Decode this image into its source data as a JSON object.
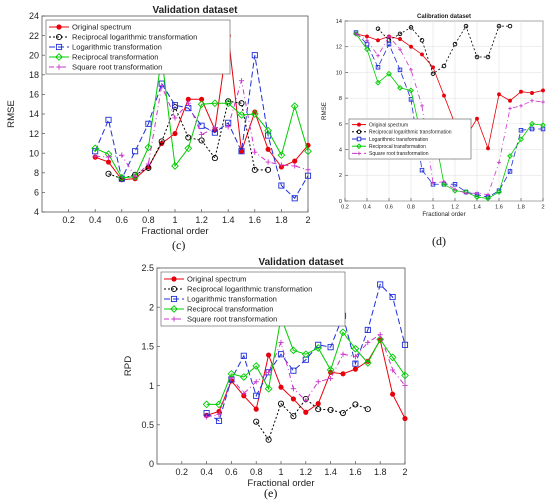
{
  "panel_labels": [
    "(c)",
    "(d)",
    "(e)"
  ],
  "chart_data": [
    {
      "id": "c",
      "type": "line",
      "title": "Validation dataset",
      "xlabel": "Fractional order",
      "ylabel": "RMSE",
      "xlim": [
        0,
        2
      ],
      "ylim": [
        4,
        24
      ],
      "xticks": [
        "0.2",
        "0.4",
        "0.6",
        "0.8",
        "1",
        "1.2",
        "1.4",
        "1.6",
        "1.8",
        "2"
      ],
      "yticks": [
        "4",
        "6",
        "8",
        "10",
        "12",
        "14",
        "16",
        "18",
        "20",
        "22",
        "24"
      ],
      "x": [
        0.4,
        0.5,
        0.6,
        0.7,
        0.8,
        0.9,
        1.0,
        1.1,
        1.2,
        1.3,
        1.4,
        1.5,
        1.6,
        1.7,
        1.8,
        1.9,
        2.0
      ],
      "series": [
        {
          "name": "Original spectrum",
          "color": "#e8000b",
          "marker": "dot",
          "dash": "",
          "values": [
            9.6,
            9.1,
            7.3,
            7.4,
            8.6,
            11.0,
            12.0,
            15.5,
            15.5,
            12.4,
            22.0,
            10.2,
            14.2,
            10.4,
            8.6,
            9.2,
            10.8
          ]
        },
        {
          "name": "Reciprocal logarithmic transformation",
          "color": "#000000",
          "marker": "circle",
          "dash": "2,2",
          "values": [
            null,
            7.9,
            7.4,
            7.8,
            8.5,
            11.2,
            14.7,
            11.6,
            11.3,
            9.5,
            15.3,
            15.1,
            8.3,
            8.3,
            null,
            null,
            null
          ]
        },
        {
          "name": "Logarithmic transformation",
          "color": "#1f2fd8",
          "marker": "square",
          "dash": "6,3",
          "values": [
            10.2,
            13.4,
            7.4,
            10.2,
            13.0,
            17.1,
            14.9,
            14.6,
            12.8,
            12.1,
            13.1,
            10.2,
            20.0,
            11.8,
            6.7,
            5.4,
            7.7
          ]
        },
        {
          "name": "Reciprocal transformation",
          "color": "#00cc00",
          "marker": "diamond",
          "dash": "",
          "values": [
            10.5,
            9.9,
            7.5,
            7.6,
            10.6,
            19.8,
            8.7,
            10.5,
            15.0,
            15.1,
            15.1,
            13.9,
            14.0,
            12.3,
            9.8,
            14.8,
            10.2
          ]
        },
        {
          "name": "Square root transformation",
          "color": "#cc33cc",
          "marker": "plus",
          "dash": "5,3,1,3",
          "values": [
            9.7,
            9.6,
            9.8,
            7.6,
            8.9,
            16.9,
            13.6,
            15.1,
            11.9,
            12.6,
            12.7,
            17.4,
            10.1,
            9.1,
            8.8,
            8.7,
            8.3
          ]
        }
      ],
      "legend": "top-left"
    },
    {
      "id": "d",
      "type": "line",
      "title": "Calibration dataset",
      "xlabel": "Fractional order",
      "ylabel": "RMSE",
      "xlim": [
        0.2,
        2
      ],
      "ylim": [
        0,
        14
      ],
      "xticks": [
        "0.2",
        "0.4",
        "0.6",
        "0.8",
        "1",
        "1.2",
        "1.4",
        "1.6",
        "1.8",
        "2"
      ],
      "yticks": [
        "0",
        "2",
        "4",
        "6",
        "8",
        "10",
        "12",
        "14"
      ],
      "x": [
        0.3,
        0.4,
        0.5,
        0.6,
        0.7,
        0.8,
        0.9,
        1.0,
        1.1,
        1.2,
        1.3,
        1.4,
        1.5,
        1.6,
        1.7,
        1.8,
        1.9,
        2.0
      ],
      "series": [
        {
          "name": "Original spectrum",
          "color": "#e8000b",
          "marker": "dot",
          "dash": "",
          "values": [
            13.0,
            12.8,
            12.5,
            12.8,
            12.6,
            12.0,
            11.4,
            10.4,
            8.2,
            6.0,
            5.0,
            6.4,
            4.1,
            8.3,
            7.8,
            8.5,
            8.4,
            8.6
          ]
        },
        {
          "name": "Reciprocal logarithmic transformation",
          "color": "#000000",
          "marker": "circle",
          "dash": "2,2",
          "values": [
            null,
            null,
            13.4,
            12.5,
            13.0,
            13.5,
            12.5,
            9.9,
            10.5,
            12.2,
            13.6,
            11.2,
            11.2,
            13.6,
            13.6,
            null,
            null,
            null
          ]
        },
        {
          "name": "Logarithmic transformation",
          "color": "#1f2fd8",
          "marker": "square",
          "dash": "6,3",
          "values": [
            13.1,
            12.2,
            10.4,
            12.2,
            10.2,
            7.9,
            2.4,
            1.3,
            1.3,
            1.3,
            0.7,
            0.5,
            0.3,
            0.8,
            2.3,
            5.5,
            5.6,
            5.6
          ]
        },
        {
          "name": "Reciprocal transformation",
          "color": "#00cc00",
          "marker": "diamond",
          "dash": "",
          "values": [
            13.0,
            11.8,
            9.2,
            9.9,
            8.8,
            8.6,
            4.8,
            5.9,
            1.3,
            0.8,
            0.7,
            0.3,
            0.2,
            0.7,
            3.5,
            4.8,
            6.0,
            5.9
          ]
        },
        {
          "name": "Square root transformation",
          "color": "#cc33cc",
          "marker": "plus",
          "dash": "5,3,1,3",
          "values": [
            13.0,
            12.5,
            11.3,
            12.8,
            11.8,
            10.2,
            7.4,
            1.4,
            1.5,
            0.9,
            0.6,
            0.6,
            0.5,
            3.0,
            7.2,
            7.4,
            7.8,
            7.7
          ]
        }
      ],
      "legend": "top-left"
    },
    {
      "id": "e",
      "type": "line",
      "title": "Validation dataset",
      "xlabel": "Fractional order",
      "ylabel": "RPD",
      "xlim": [
        0,
        2
      ],
      "ylim": [
        0,
        2.5
      ],
      "xticks": [
        "0.2",
        "0.4",
        "0.6",
        "0.8",
        "1",
        "1.2",
        "1.4",
        "1.6",
        "1.8",
        "2"
      ],
      "yticks": [
        "0",
        "0.5",
        "1",
        "1.5",
        "2",
        "2.5"
      ],
      "x": [
        0.4,
        0.5,
        0.6,
        0.7,
        0.8,
        0.9,
        1.0,
        1.1,
        1.2,
        1.3,
        1.4,
        1.5,
        1.6,
        1.7,
        1.8,
        1.9,
        2.0
      ],
      "series": [
        {
          "name": "Original spectrum",
          "color": "#e8000b",
          "marker": "dot",
          "dash": "",
          "values": [
            0.62,
            0.67,
            1.06,
            0.87,
            0.7,
            1.39,
            0.98,
            0.83,
            0.66,
            0.77,
            1.17,
            1.15,
            1.21,
            1.31,
            1.58,
            0.89,
            0.58
          ]
        },
        {
          "name": "Reciprocal logarithmic transformation",
          "color": "#000000",
          "marker": "circle",
          "dash": "2,2",
          "values": [
            null,
            null,
            null,
            null,
            0.54,
            0.31,
            0.77,
            0.61,
            0.83,
            0.7,
            0.69,
            0.65,
            0.76,
            0.7,
            null,
            null,
            null
          ]
        },
        {
          "name": "Logarithmic transformation",
          "color": "#1f2fd8",
          "marker": "square",
          "dash": "6,3",
          "values": [
            0.65,
            0.55,
            1.08,
            1.38,
            0.87,
            1.17,
            1.4,
            1.19,
            1.33,
            1.52,
            1.49,
            1.89,
            1.28,
            1.71,
            2.29,
            2.13,
            1.52
          ]
        },
        {
          "name": "Reciprocal transformation",
          "color": "#00cc00",
          "marker": "diamond",
          "dash": "",
          "values": [
            0.76,
            0.76,
            1.15,
            1.11,
            1.25,
            0.96,
            1.87,
            1.45,
            1.4,
            1.48,
            1.2,
            1.68,
            1.47,
            1.29,
            1.59,
            1.36,
            1.13
          ]
        },
        {
          "name": "Square root transformation",
          "color": "#cc33cc",
          "marker": "plus",
          "dash": "5,3,1,3",
          "values": [
            0.6,
            0.63,
            1.1,
            0.9,
            1.05,
            1.17,
            1.55,
            0.96,
            0.81,
            1.05,
            1.09,
            1.4,
            1.37,
            1.55,
            1.65,
            1.2,
            1.0
          ]
        }
      ],
      "legend": "top-left"
    }
  ]
}
